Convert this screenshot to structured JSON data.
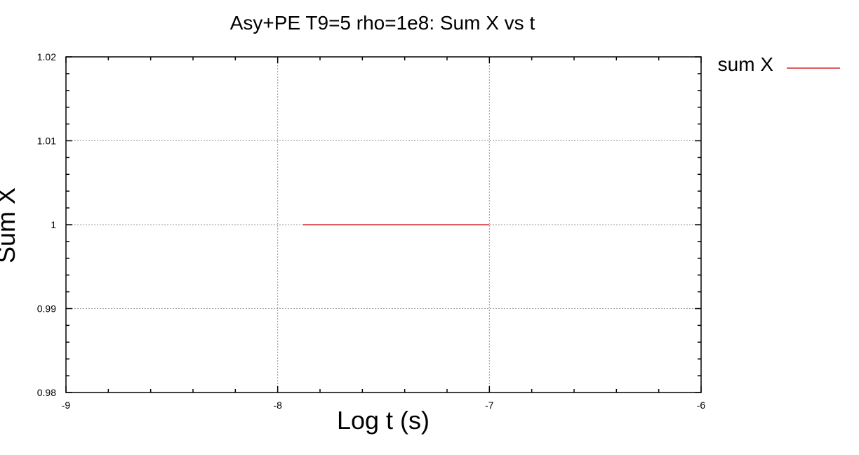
{
  "chart_data": {
    "type": "line",
    "title": "Asy+PE T9=5 rho=1e8: Sum X  vs t",
    "xlabel": "Log t (s)",
    "ylabel": "Sum X",
    "xlim": [
      -9,
      -6
    ],
    "ylim": [
      0.98,
      1.02
    ],
    "x_ticks": [
      "-9",
      "-8",
      "-7",
      "-6"
    ],
    "y_ticks": [
      "0.98",
      "0.99",
      "1",
      "1.01",
      "1.02"
    ],
    "grid": true,
    "legend_position": "outside-top-right",
    "series": [
      {
        "name": "sum X",
        "color": "#d62728",
        "x": [
          -7.88,
          -7.0
        ],
        "y": [
          1.0,
          1.0
        ]
      }
    ]
  }
}
